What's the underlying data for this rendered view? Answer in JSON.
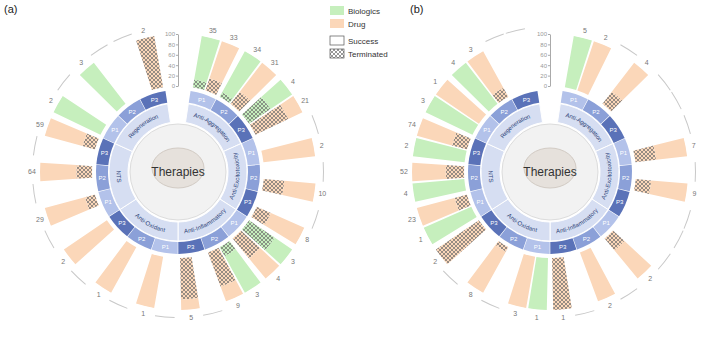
{
  "chart_data": {
    "type": "radial_bar",
    "stacked": true,
    "legend": "top",
    "ylim": [
      0,
      100
    ],
    "yticks": [
      0,
      20,
      40,
      60,
      80,
      100
    ],
    "segments": [
      "Success",
      "Terminated"
    ],
    "series": [
      {
        "name": "Biologics",
        "color": "#c6efbd"
      },
      {
        "name": "Drug",
        "color": "#fbd7b9"
      }
    ],
    "panels": [
      {
        "title": "(a)",
        "center_label": "Therapies",
        "groups": [
          {
            "name": "Anti-Aggregation",
            "phases": [
              "P1",
              "P2",
              "P3"
            ]
          },
          {
            "name": "Anti-Excitotoxicity",
            "phases": [
              "P1",
              "P2",
              "P3"
            ]
          },
          {
            "name": "Anti-Inflammatory",
            "phases": [
              "P1",
              "P2",
              "P3"
            ]
          },
          {
            "name": "Anti-Oxidant",
            "phases": [
              "P1",
              "P2",
              "P3"
            ]
          },
          {
            "name": "NTS",
            "phases": [
              "P1",
              "P2",
              "P3"
            ]
          },
          {
            "name": "Regeneration",
            "phases": [
              "P1",
              "P2",
              "P3"
            ]
          }
        ],
        "series": [
          {
            "counts": [
              35,
              34,
              4,
              null,
              null,
              null,
              3,
              3,
              null,
              null,
              null,
              null,
              null,
              null,
              null,
              2,
              3,
              null
            ],
            "terminated": [
              15,
              10,
              50,
              null,
              null,
              null,
              60,
              20,
              null,
              null,
              null,
              null,
              null,
              null,
              null,
              0,
              0,
              null
            ],
            "success": [
              85,
              90,
              50,
              null,
              null,
              null,
              40,
              80,
              null,
              null,
              null,
              null,
              null,
              null,
              null,
              100,
              100,
              null
            ]
          },
          {
            "counts": [
              33,
              31,
              21,
              2,
              10,
              8,
              4,
              9,
              5,
              1,
              1,
              2,
              29,
              64,
              59,
              null,
              null,
              2
            ],
            "terminated": [
              25,
              30,
              70,
              0,
              40,
              30,
              50,
              70,
              80,
              0,
              0,
              0,
              20,
              30,
              25,
              null,
              null,
              100
            ],
            "success": [
              75,
              70,
              30,
              100,
              60,
              70,
              50,
              30,
              20,
              100,
              100,
              100,
              80,
              70,
              75,
              null,
              null,
              0
            ]
          }
        ]
      },
      {
        "title": "(b)",
        "center_label": "Therapies",
        "groups": [
          {
            "name": "Anti-Aggregation",
            "phases": [
              "P1",
              "P2",
              "P3"
            ]
          },
          {
            "name": "Anti-Excitotoxicity",
            "phases": [
              "P1",
              "P2",
              "P3"
            ]
          },
          {
            "name": "Anti-Inflammatory",
            "phases": [
              "P1",
              "P2",
              "P3"
            ]
          },
          {
            "name": "Anti-Oxidant",
            "phases": [
              "P1",
              "P2",
              "P3"
            ]
          },
          {
            "name": "NTS",
            "phases": [
              "P1",
              "P2",
              "P3"
            ]
          },
          {
            "name": "Regeneration",
            "phases": [
              "P1",
              "P2",
              "P3"
            ]
          }
        ],
        "series": [
          {
            "counts": [
              5,
              null,
              null,
              null,
              null,
              null,
              null,
              null,
              null,
              1,
              null,
              null,
              1,
              4,
              2,
              3,
              4,
              null
            ],
            "terminated": [
              0,
              null,
              null,
              null,
              null,
              null,
              null,
              null,
              null,
              0,
              null,
              null,
              0,
              0,
              0,
              0,
              0,
              null
            ],
            "success": [
              100,
              null,
              null,
              null,
              null,
              null,
              null,
              null,
              null,
              100,
              null,
              null,
              100,
              100,
              100,
              100,
              100,
              null
            ]
          },
          {
            "counts": [
              2,
              4,
              null,
              7,
              9,
              null,
              2,
              2,
              1,
              3,
              8,
              2,
              23,
              52,
              74,
              1,
              3,
              null
            ],
            "terminated": [
              0,
              30,
              null,
              40,
              30,
              null,
              30,
              0,
              100,
              0,
              10,
              100,
              25,
              35,
              30,
              0,
              20,
              null
            ],
            "success": [
              100,
              70,
              null,
              60,
              70,
              null,
              70,
              100,
              0,
              100,
              90,
              0,
              75,
              65,
              70,
              100,
              80,
              null
            ]
          }
        ]
      }
    ]
  }
}
